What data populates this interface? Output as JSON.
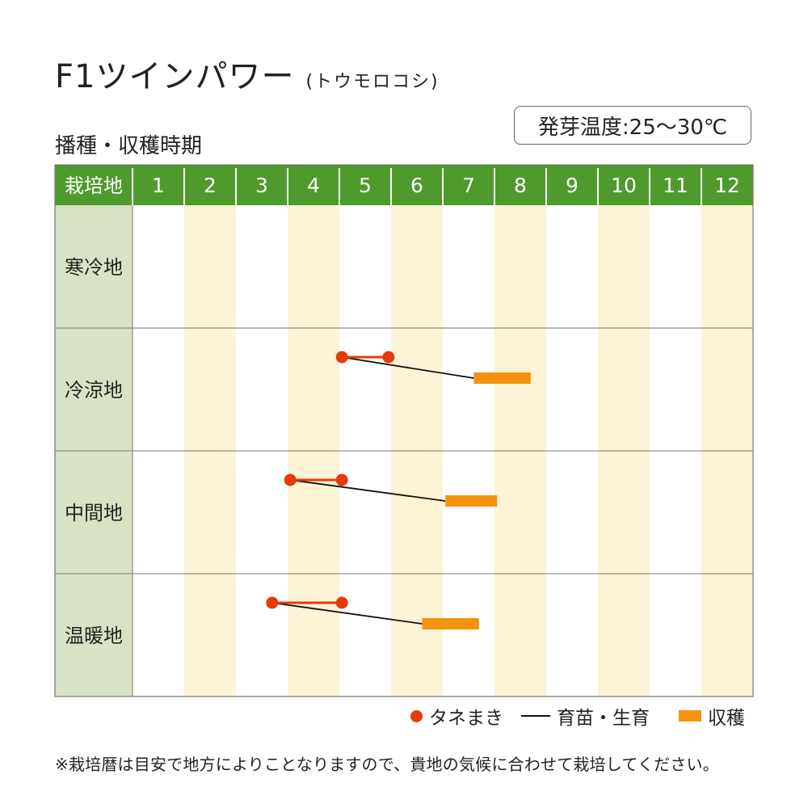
{
  "title": "F1ツインパワー",
  "title_sub": "(トウモロコシ)",
  "subtitle": "播種・収穫時期",
  "germination_temp": "発芽温度:25〜30℃",
  "legend": {
    "sowing": "タネまき",
    "growing": "育苗・生育",
    "harvest": "収穫"
  },
  "footnote": "※栽培暦は目安で地方によりことなりますので、貴地の気候に合わせて栽培してください。",
  "colors": {
    "header_green": "#4f9a2c",
    "label_column": "#d8e3c6",
    "alt_column": "#fdf3d6",
    "sowing_red": "#e63a0a",
    "harvest_orange": "#f5930f",
    "growth_line": "#111111"
  },
  "chart_data": {
    "type": "gantt",
    "header_label": "栽培地",
    "months": [
      "1",
      "2",
      "3",
      "4",
      "5",
      "6",
      "7",
      "8",
      "9",
      "10",
      "11",
      "12"
    ],
    "rows": [
      {
        "region": "寒冷地",
        "sowing": null,
        "growth": null,
        "harvest": null
      },
      {
        "region": "冷涼地",
        "sowing": [
          5.05,
          5.95
        ],
        "growth": [
          5.05,
          7.6
        ],
        "harvest": [
          7.6,
          8.7
        ]
      },
      {
        "region": "中間地",
        "sowing": [
          4.05,
          5.05
        ],
        "growth": [
          4.05,
          7.05
        ],
        "harvest": [
          7.05,
          8.05
        ]
      },
      {
        "region": "温暖地",
        "sowing": [
          3.7,
          5.05
        ],
        "growth": [
          3.7,
          6.6
        ],
        "harvest": [
          6.6,
          7.7
        ]
      }
    ]
  }
}
